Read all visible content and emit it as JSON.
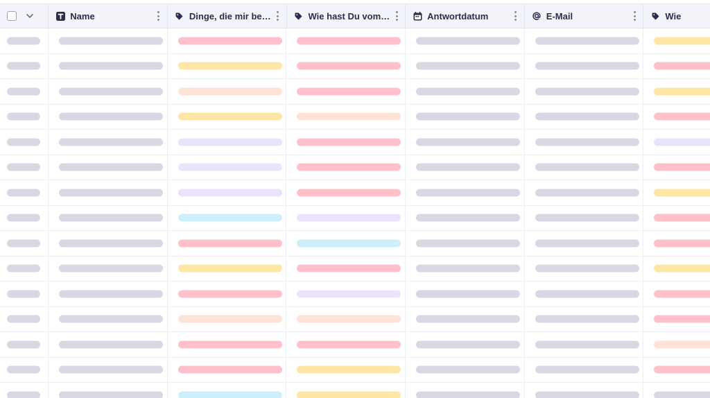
{
  "colors": {
    "gray": "#d7d8e4",
    "pink": "#fec0cb",
    "yellow": "#fde6a6",
    "peach": "#fde2d6",
    "lavender": "#ebe3fb",
    "cyan": "#cdeefb"
  },
  "columns": [
    {
      "key": "select",
      "label": "",
      "icon": "checkbox-icon"
    },
    {
      "key": "name",
      "label": "Name",
      "icon": "text-type-icon"
    },
    {
      "key": "dinge",
      "label": "Dinge, die mir bes…",
      "icon": "tag-icon"
    },
    {
      "key": "wie",
      "label": "Wie hast Du vom …",
      "icon": "tag-icon"
    },
    {
      "key": "antwortdatum",
      "label": "Antwortdatum",
      "icon": "calendar-icon"
    },
    {
      "key": "email",
      "label": "E-Mail",
      "icon": "at-sign-icon"
    },
    {
      "key": "wie2",
      "label": "Wie",
      "icon": "tag-icon"
    }
  ],
  "rows": [
    [
      "gray",
      "gray",
      "pink",
      "pink",
      "gray",
      "gray",
      "yellow"
    ],
    [
      "gray",
      "gray",
      "yellow",
      "pink",
      "gray",
      "gray",
      "pink"
    ],
    [
      "gray",
      "gray",
      "peach",
      "pink",
      "gray",
      "gray",
      "yellow"
    ],
    [
      "gray",
      "gray",
      "yellow",
      "peach",
      "gray",
      "gray",
      "pink"
    ],
    [
      "gray",
      "gray",
      "lavender",
      "pink",
      "gray",
      "gray",
      "lavender"
    ],
    [
      "gray",
      "gray",
      "lavender",
      "pink",
      "gray",
      "gray",
      "pink"
    ],
    [
      "gray",
      "gray",
      "lavender",
      "pink",
      "gray",
      "gray",
      "yellow"
    ],
    [
      "gray",
      "gray",
      "cyan",
      "lavender",
      "gray",
      "gray",
      "pink"
    ],
    [
      "gray",
      "gray",
      "pink",
      "cyan",
      "gray",
      "gray",
      "pink"
    ],
    [
      "gray",
      "gray",
      "yellow",
      "pink",
      "gray",
      "gray",
      "yellow"
    ],
    [
      "gray",
      "gray",
      "pink",
      "lavender",
      "gray",
      "gray",
      "pink"
    ],
    [
      "gray",
      "gray",
      "peach",
      "peach",
      "gray",
      "gray",
      "pink"
    ],
    [
      "gray",
      "gray",
      "pink",
      "pink",
      "gray",
      "gray",
      "peach"
    ],
    [
      "gray",
      "gray",
      "pink",
      "yellow",
      "gray",
      "gray",
      "pink"
    ],
    [
      "gray",
      "gray",
      "cyan",
      "yellow",
      "gray",
      "gray",
      "gray"
    ]
  ]
}
